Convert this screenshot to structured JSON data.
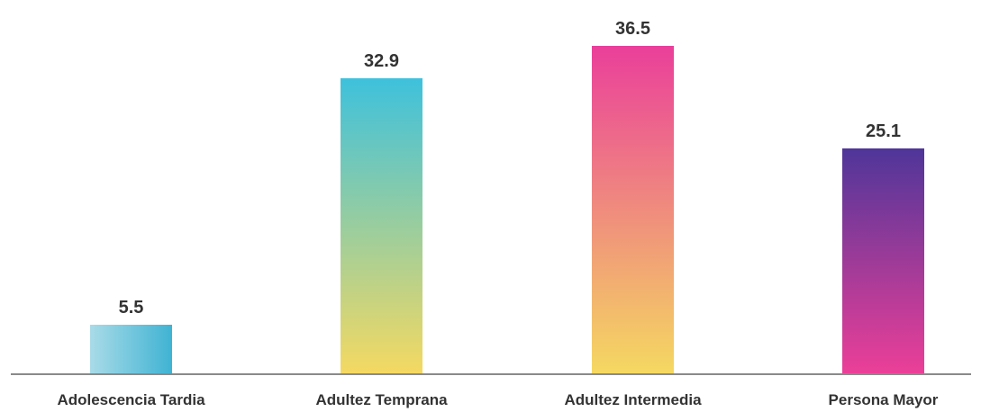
{
  "chart_data": {
    "type": "bar",
    "title": "",
    "xlabel": "",
    "ylabel": "",
    "ylim": [
      0,
      36.5
    ],
    "grid": false,
    "legend": "none",
    "categories": [
      "Adolescencia Tardia",
      "Adultez Temprana",
      "Adultez Intermedia",
      "Persona Mayor"
    ],
    "values": [
      5.5,
      32.9,
      36.5,
      25.1
    ],
    "value_labels": [
      "5.5",
      "32.9",
      "36.5",
      "25.1"
    ],
    "bar_gradients": [
      {
        "top": "#3fb3d3",
        "bottom": "#a9dbe8",
        "direction": "right-to-left"
      },
      {
        "top": "#3ec1dc",
        "bottom": "#f5d961",
        "direction": "top-to-bottom"
      },
      {
        "top": "#ea3f9a",
        "bottom": "#f5d961",
        "direction": "top-to-bottom"
      },
      {
        "top": "#4f3699",
        "bottom": "#ec3f98",
        "direction": "top-to-bottom"
      }
    ],
    "axis_color": "#8a8a8a",
    "text_color": "#333333"
  }
}
